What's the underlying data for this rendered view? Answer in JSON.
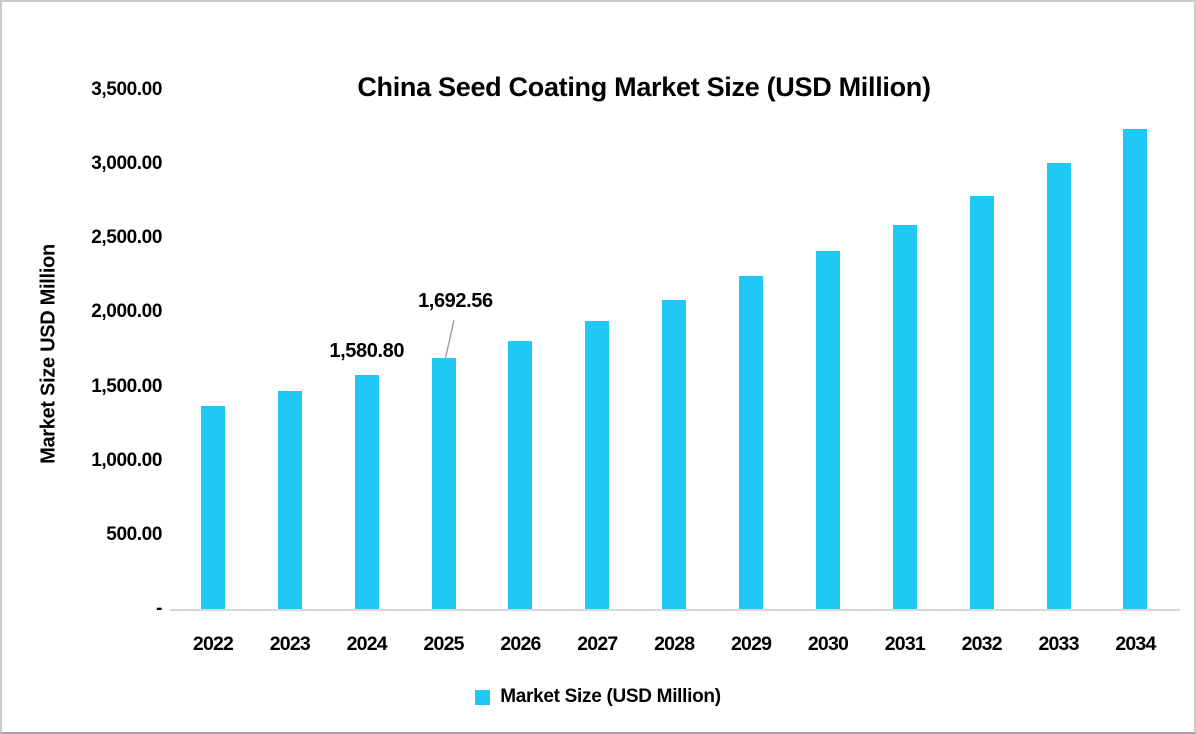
{
  "colors": {
    "bar": "#1FC8F5",
    "axis_line": "#D8D8D8",
    "leader_line": "#9E9E9E",
    "text": "#000000",
    "frame_border": "#C9C9CD"
  },
  "chart_data": {
    "type": "bar",
    "title": "China Seed Coating Market Size (USD Million)",
    "ylabel": "Market Size USD Million",
    "xlabel": "",
    "categories": [
      "2022",
      "2023",
      "2024",
      "2025",
      "2026",
      "2027",
      "2028",
      "2029",
      "2030",
      "2031",
      "2032",
      "2033",
      "2034"
    ],
    "series": [
      {
        "name": "Market Size (USD Million)",
        "values": [
          1368,
          1470,
          1580.8,
          1692.56,
          1807,
          1943,
          2085,
          2243,
          2415,
          2590,
          2787,
          3005,
          3235
        ]
      }
    ],
    "data_labels": [
      {
        "category": "2024",
        "text": "1,580.80",
        "has_leader_line": false
      },
      {
        "category": "2025",
        "text": "1,692.56",
        "has_leader_line": true
      }
    ],
    "ylim": [
      0,
      3500
    ],
    "ytick_interval": 500,
    "ytick_labels": [
      "3,500.00",
      "3,000.00",
      "2,500.00",
      "2,000.00",
      "1,500.00",
      "1,000.00",
      "500.00",
      "-"
    ],
    "grid": false,
    "legend": {
      "position": "bottom",
      "entries": [
        {
          "label": "Market Size (USD Million)",
          "swatch_color": "#1FC8F5"
        }
      ]
    }
  }
}
